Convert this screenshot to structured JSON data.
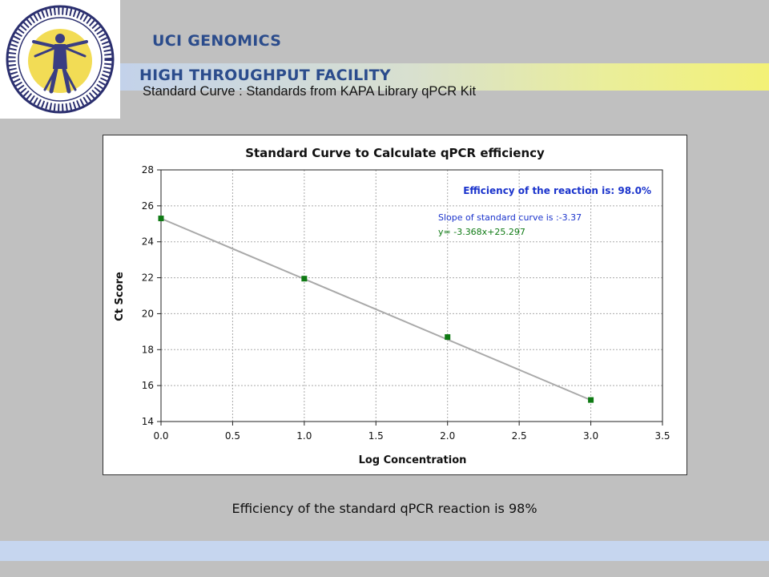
{
  "header": {
    "org": "UCI GENOMICS",
    "facility": "HIGH THROUGHPUT FACILITY",
    "subtitle": "Standard Curve : Standards from KAPA Library qPCR Kit"
  },
  "colors": {
    "brand_blue": "#2b4c8c",
    "series_green": "#0f7a14",
    "fit_line_gray": "#a9a9a9",
    "efficiency_blue": "#1a33cc",
    "logo_yellow": "#f2dc55",
    "logo_navy": "#2a2e6e"
  },
  "logo": {
    "icon": "vitruvian-man-dna-ring-icon"
  },
  "chart_data": {
    "type": "scatter",
    "title": "Standard Curve to Calculate qPCR efficiency",
    "xlabel": "Log Concentration",
    "ylabel": "Ct Score",
    "xlim": [
      0,
      3.5
    ],
    "ylim": [
      14,
      28
    ],
    "xticks": [
      "0.0",
      "0.5",
      "1.0",
      "1.5",
      "2.0",
      "2.5",
      "3.0",
      "3.5"
    ],
    "yticks": [
      "14",
      "16",
      "18",
      "20",
      "22",
      "24",
      "26",
      "28"
    ],
    "grid": true,
    "series": [
      {
        "x": [
          0,
          1,
          2,
          3
        ],
        "y": [
          25.3,
          21.95,
          18.7,
          15.2
        ]
      }
    ],
    "fit": {
      "slope": -3.368,
      "intercept": 25.297,
      "x_range": [
        0,
        3
      ]
    },
    "annotations": {
      "efficiency": "Efficiency of the reaction is: 98.0%",
      "slope": "Slope of standard curve is :-3.37",
      "equation": "y= -3.368x+25.297"
    }
  },
  "caption": "Efficiency of the standard qPCR reaction is 98%"
}
